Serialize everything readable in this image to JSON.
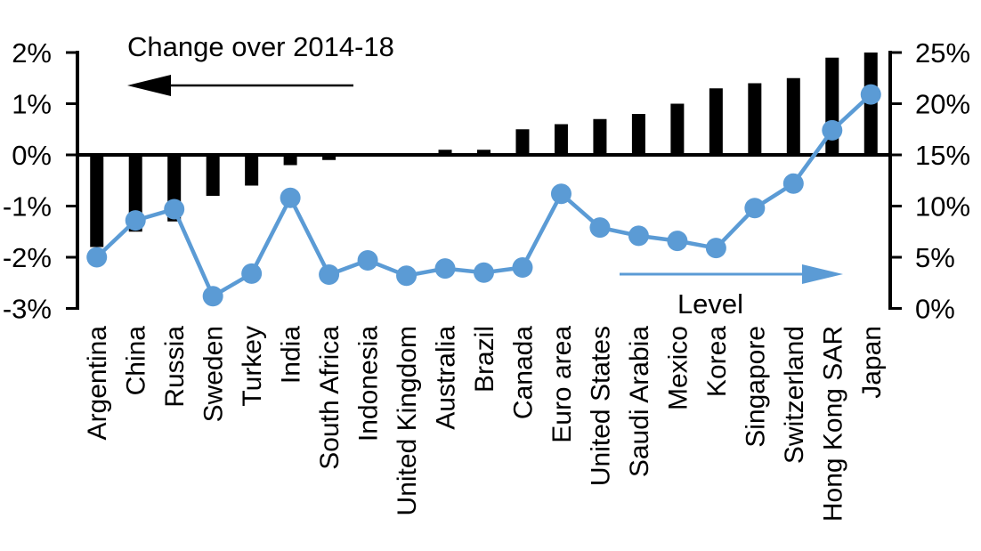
{
  "chart_data": {
    "type": "bar",
    "subtype": "combo_bar_line_dual_axis",
    "categories": [
      "Argentina",
      "China",
      "Russia",
      "Sweden",
      "Turkey",
      "India",
      "South Africa",
      "Indonesia",
      "United Kingdom",
      "Australia",
      "Brazil",
      "Canada",
      "Euro area",
      "United States",
      "Saudi Arabia",
      "Mexico",
      "Korea",
      "Singapore",
      "Switzerland",
      "Hong Kong SAR",
      "Japan"
    ],
    "series": [
      {
        "name": "Change over 2014-18",
        "type": "bar",
        "axis": "left",
        "color": "#000000",
        "values": [
          -1.8,
          -1.5,
          -1.3,
          -0.8,
          -0.6,
          -0.2,
          -0.1,
          0.0,
          0.0,
          0.1,
          0.1,
          0.5,
          0.6,
          0.7,
          0.8,
          1.0,
          1.3,
          1.4,
          1.5,
          1.9,
          2.0
        ]
      },
      {
        "name": "Level",
        "type": "line",
        "axis": "right",
        "color": "#5B9BD5",
        "values": [
          5.0,
          8.6,
          9.7,
          1.2,
          3.4,
          10.8,
          3.3,
          4.7,
          3.2,
          3.9,
          3.5,
          4.0,
          11.2,
          7.9,
          7.1,
          6.6,
          5.9,
          9.8,
          12.2,
          17.4,
          20.9
        ]
      }
    ],
    "left_axis": {
      "tick_labels": [
        "2%",
        "1%",
        "0%",
        "-1%",
        "-2%",
        "-3%"
      ],
      "tick_values": [
        2,
        1,
        0,
        -1,
        -2,
        -3
      ],
      "min": -3,
      "max": 2
    },
    "right_axis": {
      "tick_labels": [
        "25%",
        "20%",
        "15%",
        "10%",
        "5%",
        "0%"
      ],
      "tick_values": [
        25,
        20,
        15,
        10,
        5,
        0
      ],
      "min": 0,
      "max": 25
    },
    "grid": false,
    "legend_position": "none"
  },
  "annotations": {
    "bar_label": "Change over 2014-18",
    "line_label": "Level"
  },
  "colors": {
    "bar": "#000000",
    "line": "#5B9BD5",
    "axis": "#000000",
    "background": "#FFFFFF"
  }
}
